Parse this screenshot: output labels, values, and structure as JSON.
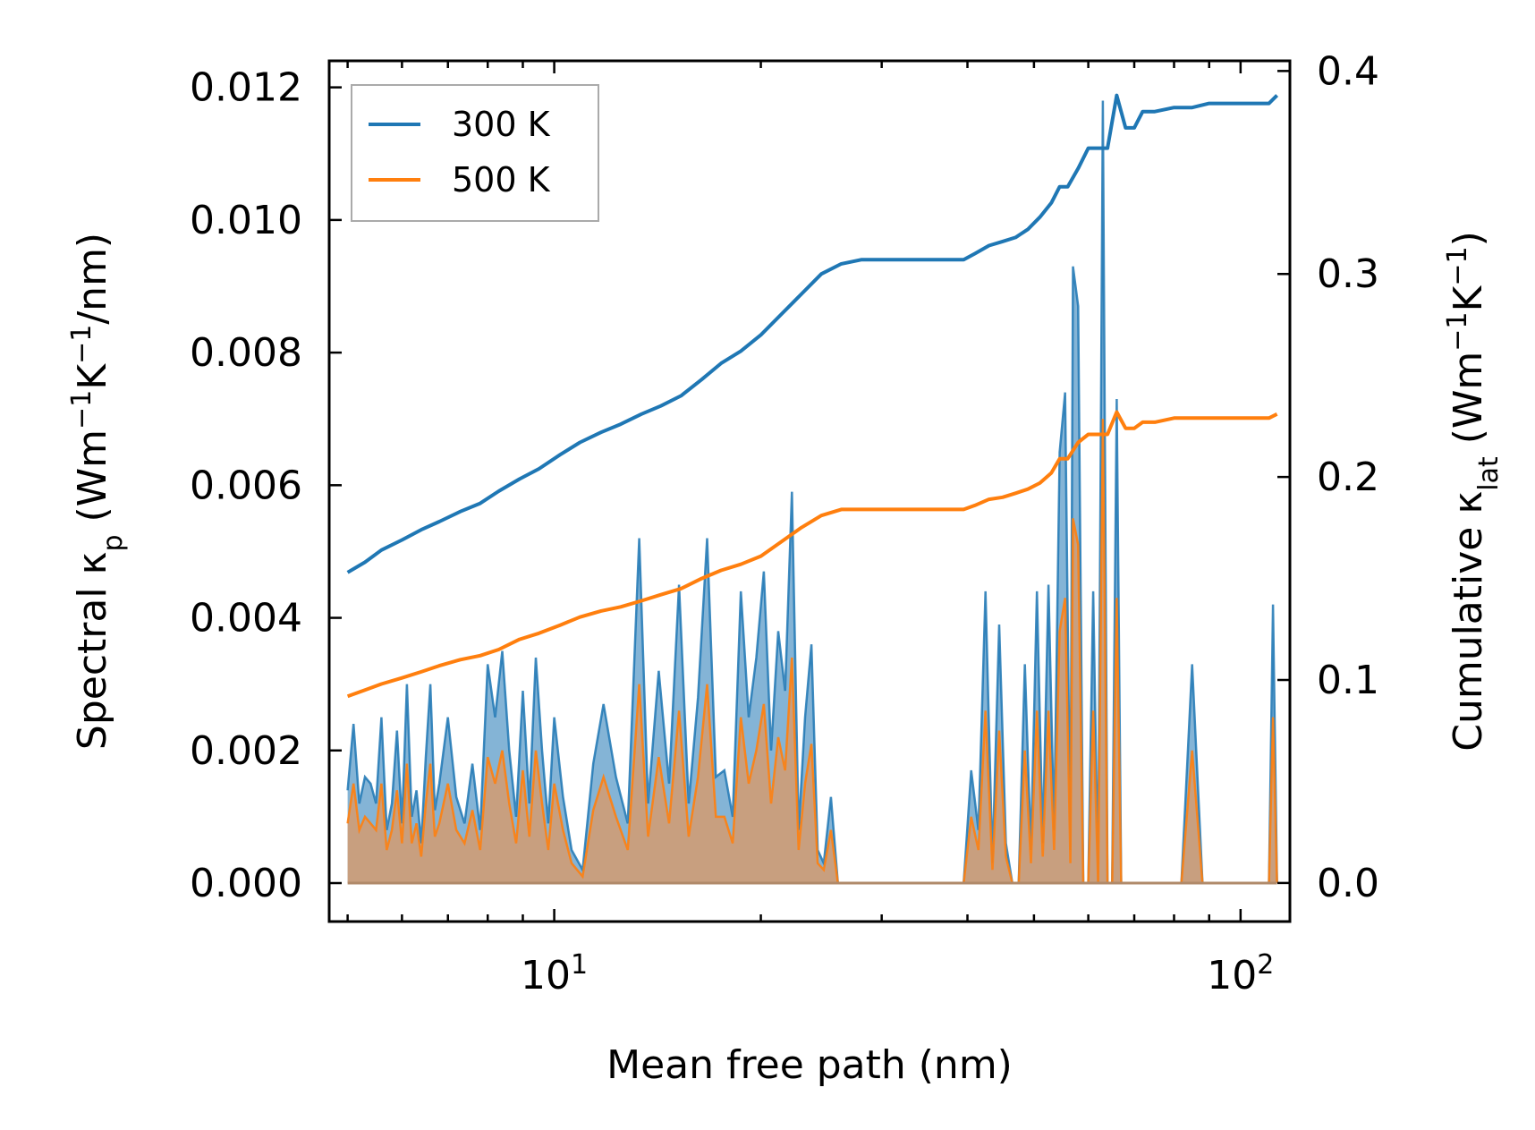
{
  "chart_data": {
    "type": "line",
    "xscale": "log",
    "xlim": [
      4.7,
      118
    ],
    "xlabel": "Mean free path (nm)",
    "x_ticks": [
      {
        "value": 10,
        "base": "10",
        "exp": "1"
      },
      {
        "value": 100,
        "base": "10",
        "exp": "2"
      }
    ],
    "left_axis": {
      "label_prefix": "Spectral κ",
      "label_sub": "p",
      "label_open": " (Wm",
      "label_sup1": "−1",
      "label_mid": "K",
      "label_sup2": "−1",
      "label_close": "/nm)",
      "ylim": [
        -0.00058,
        0.0124
      ],
      "ticks": [
        "0.000",
        "0.002",
        "0.004",
        "0.006",
        "0.008",
        "0.010",
        "0.012"
      ],
      "tick_values": [
        0,
        0.002,
        0.004,
        0.006,
        0.008,
        0.01,
        0.012
      ]
    },
    "right_axis": {
      "label_prefix": "Cumulative κ",
      "label_sub": "lat",
      "label_open": " (Wm",
      "label_sup1": "−1",
      "label_mid": "K",
      "label_sup2": "−1",
      "label_close": ")",
      "ylim": [
        -0.019,
        0.405
      ],
      "ticks": [
        "0.0",
        "0.1",
        "0.2",
        "0.3",
        "0.4"
      ],
      "tick_values": [
        0,
        0.1,
        0.2,
        0.3,
        0.4
      ]
    },
    "legend": {
      "position": "upper-left",
      "entries": [
        {
          "label": "300 K",
          "color": "#1f77b4"
        },
        {
          "label": "500 K",
          "color": "#ff7f0e"
        }
      ]
    },
    "series": [
      {
        "name": "300 K",
        "color": "#1f77b4",
        "axis": "right",
        "kind": "cumulative",
        "x": [
          5.0,
          5.3,
          5.6,
          6.0,
          6.4,
          6.8,
          7.3,
          7.8,
          8.3,
          8.9,
          9.5,
          10.2,
          10.9,
          11.7,
          12.5,
          13.4,
          14.3,
          15.3,
          16.4,
          17.5,
          18.7,
          20.0,
          21.4,
          22.9,
          24.5,
          26.2,
          28.0,
          30.0,
          33.0,
          36.0,
          39.5,
          41.0,
          43.0,
          45.0,
          47.0,
          49.0,
          51.0,
          53.0,
          54.5,
          56.0,
          58.0,
          60.0,
          62.0,
          64.0,
          66.0,
          68.0,
          70.0,
          72.0,
          75.0,
          80.0,
          85.0,
          90.0,
          100.0,
          110.0,
          113.0
        ],
        "y": [
          0.153,
          0.158,
          0.164,
          0.169,
          0.174,
          0.178,
          0.183,
          0.187,
          0.193,
          0.199,
          0.204,
          0.211,
          0.217,
          0.222,
          0.226,
          0.231,
          0.235,
          0.24,
          0.248,
          0.256,
          0.262,
          0.27,
          0.28,
          0.29,
          0.3,
          0.305,
          0.307,
          0.307,
          0.307,
          0.307,
          0.307,
          0.31,
          0.314,
          0.316,
          0.318,
          0.322,
          0.328,
          0.335,
          0.343,
          0.343,
          0.352,
          0.362,
          0.362,
          0.362,
          0.388,
          0.372,
          0.372,
          0.38,
          0.38,
          0.382,
          0.382,
          0.384,
          0.384,
          0.384,
          0.388
        ]
      },
      {
        "name": "500 K",
        "color": "#ff7f0e",
        "axis": "right",
        "kind": "cumulative",
        "x": [
          5.0,
          5.3,
          5.6,
          6.0,
          6.4,
          6.8,
          7.3,
          7.8,
          8.3,
          8.9,
          9.5,
          10.2,
          10.9,
          11.7,
          12.5,
          13.4,
          14.3,
          15.3,
          16.4,
          17.5,
          18.7,
          20.0,
          21.4,
          22.9,
          24.5,
          26.2,
          28.0,
          30.0,
          33.0,
          36.0,
          39.5,
          41.0,
          43.0,
          45.0,
          47.0,
          49.0,
          51.0,
          53.0,
          54.5,
          56.0,
          58.0,
          60.0,
          62.0,
          64.0,
          66.0,
          68.0,
          70.0,
          72.0,
          75.0,
          80.0,
          85.0,
          90.0,
          100.0,
          110.0,
          113.0
        ],
        "y": [
          0.092,
          0.095,
          0.098,
          0.101,
          0.104,
          0.107,
          0.11,
          0.112,
          0.115,
          0.12,
          0.123,
          0.127,
          0.131,
          0.134,
          0.136,
          0.139,
          0.142,
          0.145,
          0.15,
          0.154,
          0.157,
          0.161,
          0.168,
          0.175,
          0.181,
          0.184,
          0.184,
          0.184,
          0.184,
          0.184,
          0.184,
          0.186,
          0.189,
          0.19,
          0.192,
          0.194,
          0.197,
          0.202,
          0.209,
          0.209,
          0.217,
          0.221,
          0.221,
          0.221,
          0.232,
          0.224,
          0.224,
          0.227,
          0.227,
          0.229,
          0.229,
          0.229,
          0.229,
          0.229,
          0.231
        ]
      },
      {
        "name": "300 K spectral",
        "color": "#1f77b4",
        "axis": "left",
        "kind": "spectral",
        "x": [
          5.0,
          5.1,
          5.2,
          5.3,
          5.4,
          5.5,
          5.6,
          5.7,
          5.8,
          5.9,
          6.0,
          6.1,
          6.2,
          6.3,
          6.4,
          6.5,
          6.6,
          6.7,
          6.8,
          7.0,
          7.2,
          7.4,
          7.6,
          7.8,
          8.0,
          8.2,
          8.4,
          8.6,
          8.8,
          9.0,
          9.2,
          9.4,
          9.6,
          9.8,
          10.0,
          10.3,
          10.6,
          11.0,
          11.4,
          11.8,
          12.3,
          12.8,
          13.3,
          13.7,
          14.2,
          14.7,
          15.2,
          15.7,
          16.2,
          16.7,
          17.2,
          17.7,
          18.2,
          18.7,
          19.2,
          19.7,
          20.2,
          20.7,
          21.2,
          21.7,
          22.2,
          22.7,
          23.2,
          23.7,
          24.2,
          24.7,
          25.3,
          25.9,
          26.5,
          27.3,
          28.0,
          29.0,
          31.0,
          34.0,
          37.0,
          39.5,
          40.5,
          41.5,
          42.5,
          43.5,
          44.5,
          45.5,
          46.5,
          47.5,
          48.5,
          49.5,
          50.5,
          51.5,
          52.5,
          53.5,
          54.5,
          55.5,
          56.5,
          57.0,
          58.0,
          59.0,
          60.0,
          61.0,
          62.0,
          63.0,
          64.0,
          65.0,
          66.0,
          67.0,
          68.0,
          69.0,
          70.0,
          71.0,
          72.0,
          73.0,
          74.0,
          75.0,
          76.0,
          77.0,
          78.0,
          79.0,
          80.0,
          82.0,
          85.0,
          88.0,
          90.0,
          95.0,
          100.0,
          105.0,
          108.0,
          110.0,
          111.5,
          113.0
        ],
        "y": [
          0.0014,
          0.0024,
          0.0012,
          0.0016,
          0.0015,
          0.0012,
          0.0025,
          0.0008,
          0.0012,
          0.0023,
          0.0009,
          0.003,
          0.001,
          0.0014,
          0.0006,
          0.0019,
          0.003,
          0.0011,
          0.0015,
          0.0025,
          0.0013,
          0.0009,
          0.0018,
          0.0008,
          0.0033,
          0.0025,
          0.0035,
          0.002,
          0.001,
          0.0029,
          0.0012,
          0.0034,
          0.002,
          0.0009,
          0.0025,
          0.0013,
          0.0005,
          0.0002,
          0.0018,
          0.0027,
          0.0016,
          0.0009,
          0.0052,
          0.0012,
          0.0032,
          0.0015,
          0.0045,
          0.0012,
          0.0028,
          0.0052,
          0.0016,
          0.0017,
          0.001,
          0.0044,
          0.0025,
          0.0034,
          0.0047,
          0.002,
          0.0038,
          0.0029,
          0.0059,
          0.0008,
          0.0025,
          0.0036,
          0.0005,
          0.0003,
          0.0013,
          0.0,
          0.0,
          0.0,
          0.0,
          0.0,
          0.0,
          0.0,
          0.0,
          0.0,
          0.0017,
          0.0008,
          0.0044,
          0.0003,
          0.0039,
          0.0006,
          0.0,
          0.0,
          0.0033,
          0.0005,
          0.0044,
          0.0006,
          0.0045,
          0.0008,
          0.0065,
          0.0074,
          0.0005,
          0.0093,
          0.0087,
          0.0,
          0.0,
          0.0044,
          0.0,
          0.0118,
          0.0,
          0.0,
          0.0073,
          0.0,
          0.0,
          0.0,
          0.0,
          0.0,
          0.0,
          0.0,
          0.0,
          0.0,
          0.0,
          0.0,
          0.0,
          0.0,
          0.0,
          0.0,
          0.0033,
          0.0,
          0.0,
          0.0,
          0.0,
          0.0,
          0.0,
          0.0,
          0.0042,
          0.0
        ]
      },
      {
        "name": "500 K spectral",
        "color": "#ff7f0e",
        "axis": "left",
        "kind": "spectral",
        "x": [
          5.0,
          5.1,
          5.2,
          5.3,
          5.4,
          5.5,
          5.6,
          5.7,
          5.8,
          5.9,
          6.0,
          6.1,
          6.2,
          6.3,
          6.4,
          6.5,
          6.6,
          6.7,
          6.8,
          7.0,
          7.2,
          7.4,
          7.6,
          7.8,
          8.0,
          8.2,
          8.4,
          8.6,
          8.8,
          9.0,
          9.2,
          9.4,
          9.6,
          9.8,
          10.0,
          10.3,
          10.6,
          11.0,
          11.4,
          11.8,
          12.3,
          12.8,
          13.3,
          13.7,
          14.2,
          14.7,
          15.2,
          15.7,
          16.2,
          16.7,
          17.2,
          17.7,
          18.2,
          18.7,
          19.2,
          19.7,
          20.2,
          20.7,
          21.2,
          21.7,
          22.2,
          22.7,
          23.2,
          23.7,
          24.2,
          24.7,
          25.3,
          25.9,
          26.5,
          27.3,
          28.0,
          29.0,
          31.0,
          34.0,
          37.0,
          39.5,
          40.5,
          41.5,
          42.5,
          43.5,
          44.5,
          45.5,
          46.5,
          47.5,
          48.5,
          49.5,
          50.5,
          51.5,
          52.5,
          53.5,
          54.5,
          55.5,
          56.5,
          57.0,
          58.0,
          59.0,
          60.0,
          61.0,
          62.0,
          63.0,
          64.0,
          65.0,
          66.0,
          67.0,
          68.0,
          69.0,
          70.0,
          71.0,
          72.0,
          73.0,
          74.0,
          75.0,
          76.0,
          77.0,
          78.0,
          79.0,
          80.0,
          82.0,
          85.0,
          88.0,
          90.0,
          95.0,
          100.0,
          105.0,
          108.0,
          110.0,
          111.5,
          113.0
        ],
        "y": [
          0.0009,
          0.0015,
          0.0008,
          0.001,
          0.0009,
          0.0008,
          0.0015,
          0.0005,
          0.0008,
          0.0014,
          0.0006,
          0.0018,
          0.0006,
          0.0009,
          0.0004,
          0.0012,
          0.0018,
          0.0007,
          0.0009,
          0.0015,
          0.0008,
          0.0006,
          0.0011,
          0.0005,
          0.0019,
          0.0015,
          0.002,
          0.0012,
          0.0006,
          0.0017,
          0.0007,
          0.002,
          0.0012,
          0.0005,
          0.0015,
          0.0008,
          0.0003,
          0.0001,
          0.0011,
          0.0016,
          0.001,
          0.0005,
          0.003,
          0.0007,
          0.0019,
          0.0009,
          0.0026,
          0.0007,
          0.0016,
          0.003,
          0.001,
          0.001,
          0.0006,
          0.0025,
          0.0015,
          0.002,
          0.0027,
          0.0012,
          0.0022,
          0.0017,
          0.0034,
          0.0005,
          0.0015,
          0.0021,
          0.0003,
          0.0002,
          0.0008,
          0.0,
          0.0,
          0.0,
          0.0,
          0.0,
          0.0,
          0.0,
          0.0,
          0.0,
          0.001,
          0.0005,
          0.0026,
          0.0002,
          0.0023,
          0.0004,
          0.0,
          0.0,
          0.002,
          0.0003,
          0.0026,
          0.0004,
          0.0026,
          0.0005,
          0.0038,
          0.0043,
          0.0003,
          0.0055,
          0.0051,
          0.0,
          0.0,
          0.0026,
          0.0,
          0.007,
          0.0,
          0.0,
          0.0043,
          0.0,
          0.0,
          0.0,
          0.0,
          0.0,
          0.0,
          0.0,
          0.0,
          0.0,
          0.0,
          0.0,
          0.0,
          0.0,
          0.0,
          0.0,
          0.002,
          0.0,
          0.0,
          0.0,
          0.0,
          0.0,
          0.0,
          0.0,
          0.0025,
          0.0
        ]
      }
    ]
  }
}
